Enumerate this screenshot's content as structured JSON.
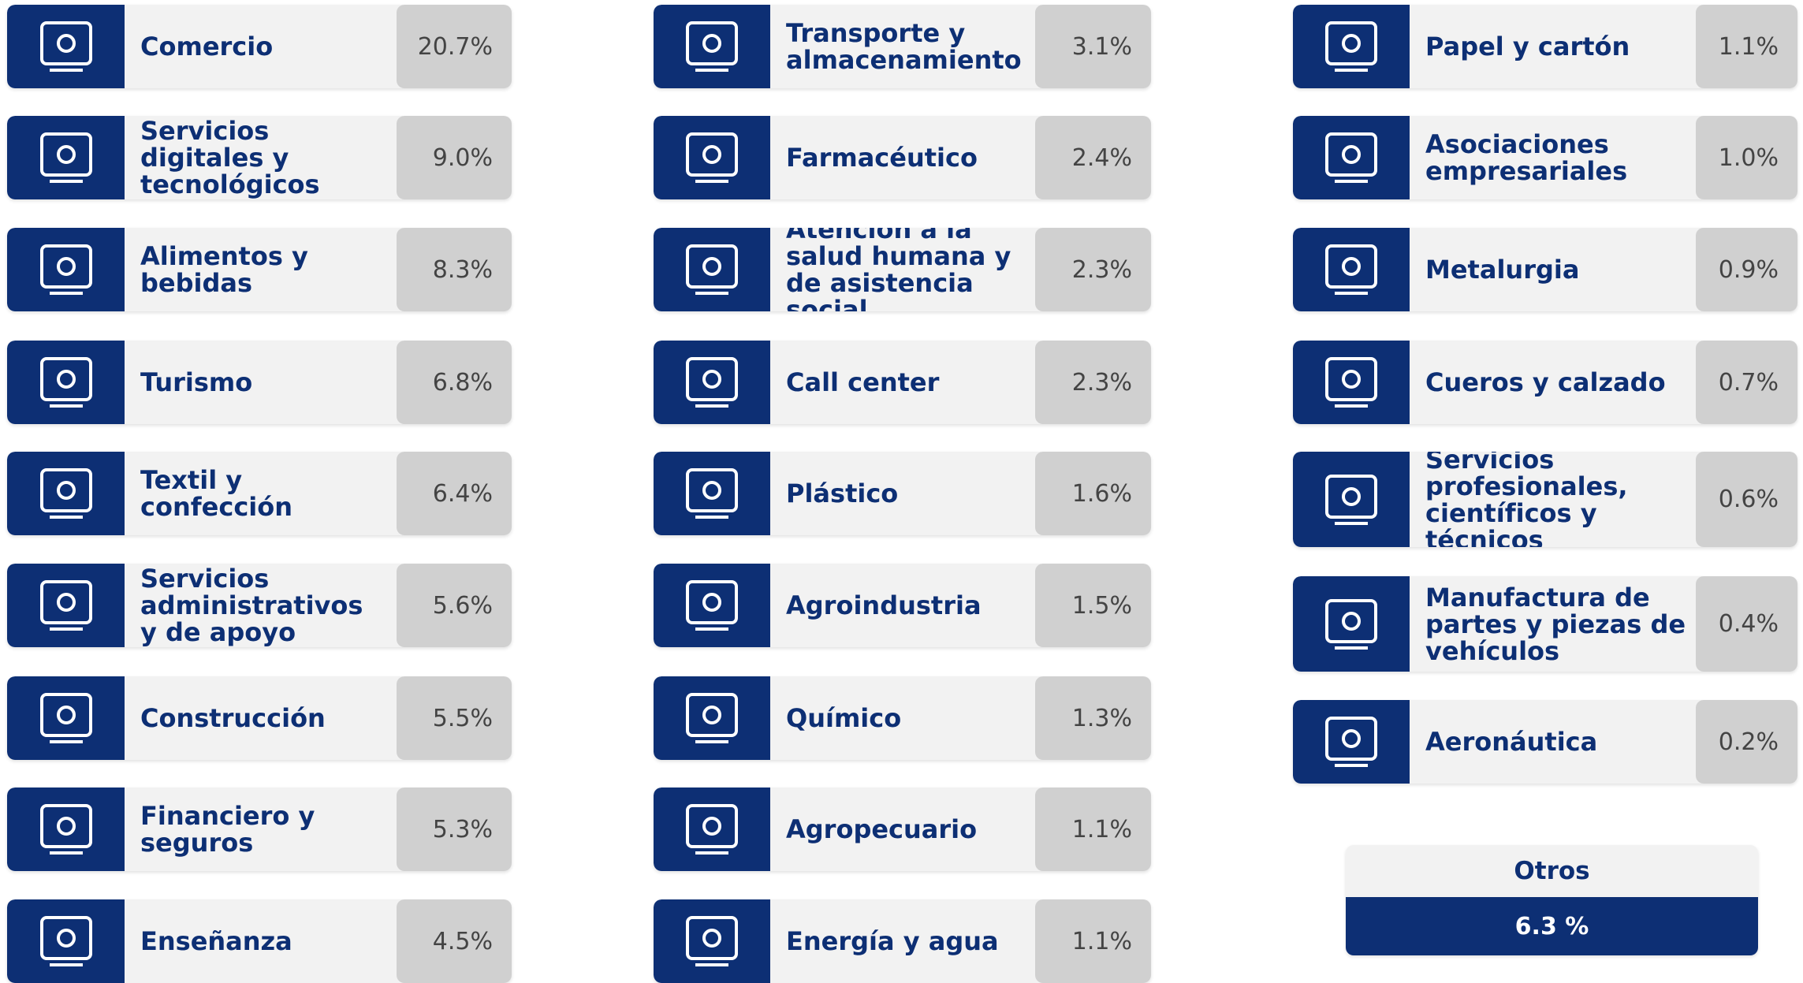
{
  "columns": [
    [
      {
        "label": "Comercio",
        "value": "20.7%"
      },
      {
        "label": "Servicios digitales y tecnológicos",
        "value": "9.0%"
      },
      {
        "label": "Alimentos y bebidas",
        "value": "8.3%"
      },
      {
        "label": "Turismo",
        "value": "6.8%"
      },
      {
        "label": "Textil y confección",
        "value": "6.4%"
      },
      {
        "label": "Servicios administrativos y de apoyo",
        "value": "5.6%"
      },
      {
        "label": "Construcción",
        "value": "5.5%"
      },
      {
        "label": "Financiero y seguros",
        "value": "5.3%"
      },
      {
        "label": "Enseñanza",
        "value": "4.5%"
      }
    ],
    [
      {
        "label": "Transporte y almacenamiento",
        "value": "3.1%"
      },
      {
        "label": "Farmacéutico",
        "value": "2.4%"
      },
      {
        "label": "Atención a la salud humana y de asistencia social",
        "value": "2.3%"
      },
      {
        "label": "Call center",
        "value": "2.3%"
      },
      {
        "label": "Plástico",
        "value": "1.6%"
      },
      {
        "label": "Agroindustria",
        "value": "1.5%"
      },
      {
        "label": "Químico",
        "value": "1.3%"
      },
      {
        "label": "Agropecuario",
        "value": "1.1%"
      },
      {
        "label": "Energía y agua",
        "value": "1.1%"
      }
    ],
    [
      {
        "label": "Papel y cartón",
        "value": "1.1%"
      },
      {
        "label": "Asociaciones empresariales",
        "value": "1.0%"
      },
      {
        "label": "Metalurgia",
        "value": "0.9%"
      },
      {
        "label": "Cueros y calzado",
        "value": "0.7%"
      },
      {
        "label": "Servicios profesionales, científicos y técnicos",
        "value": "0.6%"
      },
      {
        "label": "Manufactura de partes y piezas de vehículos",
        "value": "0.4%"
      },
      {
        "label": "Aeronáutica",
        "value": "0.2%"
      }
    ]
  ],
  "otros": {
    "label": "Otros",
    "value": "6.3 %"
  }
}
